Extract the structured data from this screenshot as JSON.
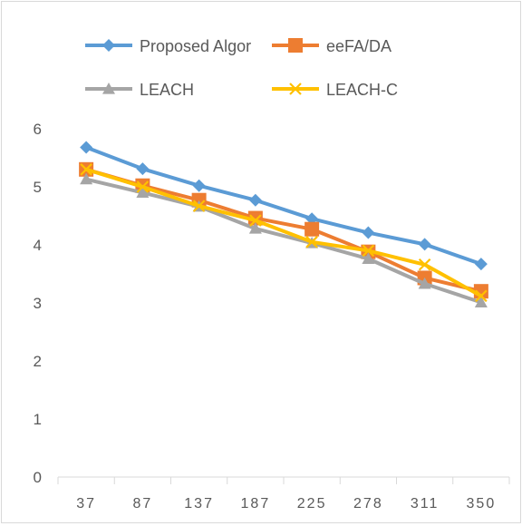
{
  "chart_data": {
    "type": "line",
    "title": "",
    "xlabel": "",
    "ylabel": "",
    "categories": [
      "37",
      "87",
      "137",
      "187",
      "225",
      "278",
      "311",
      "350"
    ],
    "ylim": [
      0,
      6
    ],
    "yticks": [
      "0",
      "1",
      "2",
      "3",
      "4",
      "5",
      "6"
    ],
    "grid": false,
    "legend_position": "top",
    "series": [
      {
        "name": "Proposed Algor",
        "color": "#5b9bd5",
        "marker": "diamond",
        "values": [
          5.68,
          5.31,
          5.02,
          4.77,
          4.45,
          4.21,
          4.01,
          3.67
        ]
      },
      {
        "name": "eeFA/DA",
        "color": "#ed7d31",
        "marker": "square",
        "values": [
          5.3,
          5.02,
          4.77,
          4.46,
          4.27,
          3.88,
          3.43,
          3.2
        ]
      },
      {
        "name": "LEACH",
        "color": "#a5a5a5",
        "marker": "triangle",
        "values": [
          5.13,
          4.9,
          4.66,
          4.28,
          4.03,
          3.76,
          3.33,
          3.01
        ]
      },
      {
        "name": "LEACH-C",
        "color": "#ffc000",
        "marker": "x",
        "values": [
          5.3,
          5.0,
          4.67,
          4.42,
          4.05,
          3.9,
          3.66,
          3.12
        ]
      }
    ]
  }
}
